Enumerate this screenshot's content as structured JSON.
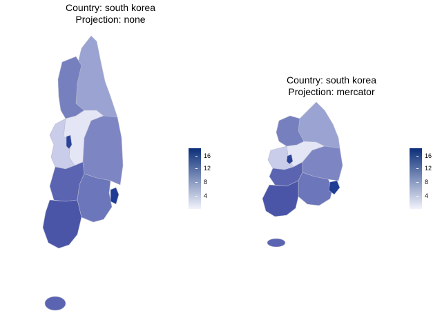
{
  "maps": [
    {
      "title_line1": "Country: south korea",
      "title_line2": "Projection: none"
    },
    {
      "title_line1": "Country: south korea",
      "title_line2": "Projection: mercator"
    }
  ],
  "legend": {
    "ticks": [
      "16",
      "12",
      "8",
      "4"
    ],
    "color_high": "#0b2e7a",
    "color_low": "#f2f3fb"
  },
  "colors": {
    "gangwon": "#9aa3d2",
    "gyeonggi": "#7780bf",
    "seoul_area": "#c9cdea",
    "chungbuk": "#e4e6f5",
    "gyeongbuk": "#7d86c3",
    "jeonbuk": "#5a64b1",
    "jeonnam": "#4a55a8",
    "gyeongnam": "#6c76ba",
    "busan": "#1e3c93",
    "daejeon": "#2a4398",
    "jeju": "#5a64b1"
  }
}
